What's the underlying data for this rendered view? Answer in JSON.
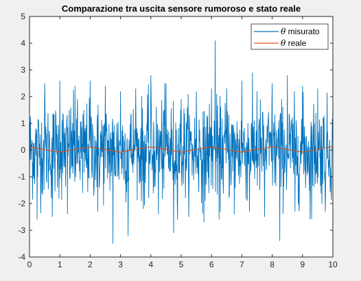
{
  "chart_data": {
    "type": "line",
    "title": "Comparazione tra uscita sensore rumoroso e stato reale",
    "xlabel": "",
    "ylabel": "",
    "xlim": [
      0,
      10
    ],
    "ylim": [
      -4,
      5
    ],
    "x_ticks": [
      "0",
      "1",
      "2",
      "3",
      "4",
      "5",
      "6",
      "7",
      "8",
      "9",
      "10"
    ],
    "y_ticks": [
      "-4",
      "-3",
      "-2",
      "-1",
      "0",
      "1",
      "2",
      "3",
      "4",
      "5"
    ],
    "grid": false,
    "legend_position": "top-right",
    "series": [
      {
        "name": "θ misurato",
        "color": "#0072bd",
        "description_stats": {
          "mean": 0,
          "std_approx": 0.9,
          "samples_approx": 1000
        },
        "x": [
          0.0,
          0.25,
          0.5,
          0.75,
          1.0,
          1.25,
          1.5,
          1.75,
          2.0,
          2.25,
          2.5,
          2.75,
          3.0,
          3.25,
          3.5,
          3.75,
          4.0,
          4.25,
          4.5,
          4.75,
          5.0,
          5.25,
          5.5,
          5.75,
          6.0,
          6.12,
          6.25,
          6.5,
          6.75,
          7.0,
          7.25,
          7.5,
          7.75,
          8.0,
          8.25,
          8.5,
          8.75,
          9.0,
          9.25,
          9.5,
          9.75,
          10.0
        ],
        "y": [
          1.2,
          -2.6,
          2.5,
          -2.5,
          2.6,
          -2.4,
          2.4,
          -1.6,
          2.6,
          -2.3,
          2.4,
          -3.5,
          2.2,
          -3.2,
          2.3,
          -2.2,
          2.8,
          -2.4,
          2.5,
          -3.1,
          1.9,
          -2.5,
          2.2,
          -2.7,
          2.3,
          4.1,
          -2.6,
          2.3,
          -2.4,
          2.6,
          -2.3,
          2.2,
          -2.5,
          2.5,
          -3.4,
          2.8,
          -2.3,
          2.4,
          -2.6,
          2.3,
          -2.3,
          2.0
        ]
      },
      {
        "name": "θ reale",
        "color": "#d95319",
        "x": [
          0.0,
          0.5,
          1.0,
          1.5,
          2.0,
          2.5,
          3.0,
          3.5,
          4.0,
          4.5,
          5.0,
          5.5,
          6.0,
          6.5,
          7.0,
          7.5,
          8.0,
          8.5,
          9.0,
          9.5,
          10.0
        ],
        "y": [
          0.12,
          0.02,
          -0.08,
          0.03,
          0.12,
          0.02,
          -0.08,
          0.03,
          0.12,
          0.02,
          -0.08,
          0.03,
          0.12,
          0.02,
          -0.08,
          0.03,
          0.12,
          0.02,
          -0.08,
          0.03,
          0.14
        ]
      }
    ]
  }
}
